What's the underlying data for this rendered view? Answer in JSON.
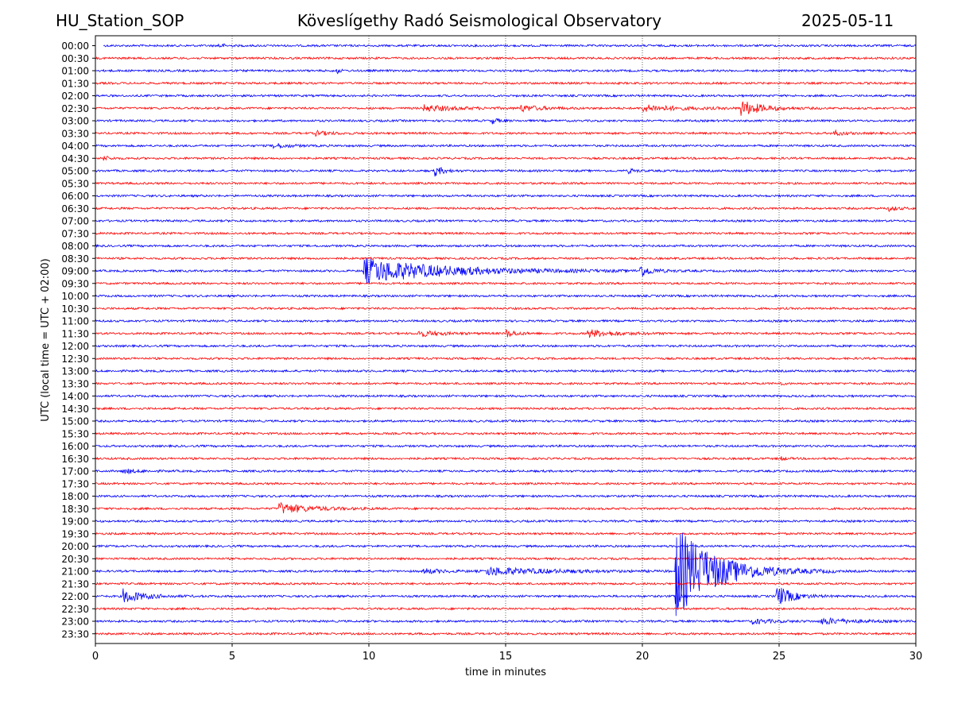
{
  "header": {
    "station": "HU_Station_SOP",
    "observatory": "Köveslígethy Radó Seismological Observatory",
    "date": "2025-05-11"
  },
  "chart_data": {
    "type": "line",
    "title": "Köveslígethy Radó Seismological Observatory",
    "xlabel": "time in minutes",
    "ylabel": "UTC (local time = UTC + 02:00)",
    "xlim": [
      0,
      30
    ],
    "x_ticks": [
      "0",
      "5",
      "10",
      "15",
      "20",
      "25",
      "30"
    ],
    "grid": "vertical dotted at each x tick",
    "trace_colors": [
      "#0000ff",
      "#ff0000"
    ],
    "rows": [
      {
        "label": "00:00",
        "color": "#0000ff",
        "events": [
          {
            "t": 4.5,
            "amp": 3,
            "dur": 0.6
          }
        ]
      },
      {
        "label": "00:30",
        "color": "#ff0000",
        "events": []
      },
      {
        "label": "01:00",
        "color": "#0000ff",
        "events": [
          {
            "t": 8.8,
            "amp": 5,
            "dur": 0.3
          }
        ]
      },
      {
        "label": "01:30",
        "color": "#ff0000",
        "events": []
      },
      {
        "label": "02:00",
        "color": "#0000ff",
        "events": []
      },
      {
        "label": "02:30",
        "color": "#ff0000",
        "events": [
          {
            "t": 12.0,
            "amp": 4,
            "dur": 3.0
          },
          {
            "t": 15.5,
            "amp": 4,
            "dur": 2.0
          },
          {
            "t": 20.0,
            "amp": 4,
            "dur": 3.5
          },
          {
            "t": 23.6,
            "amp": 10,
            "dur": 2.0
          }
        ]
      },
      {
        "label": "03:00",
        "color": "#0000ff",
        "events": [
          {
            "t": 14.5,
            "amp": 4,
            "dur": 0.6
          }
        ]
      },
      {
        "label": "03:30",
        "color": "#ff0000",
        "events": [
          {
            "t": 8.0,
            "amp": 3,
            "dur": 1.5
          },
          {
            "t": 27.0,
            "amp": 3,
            "dur": 1.0
          }
        ]
      },
      {
        "label": "04:00",
        "color": "#0000ff",
        "events": [
          {
            "t": 6.5,
            "amp": 3,
            "dur": 1.5
          }
        ]
      },
      {
        "label": "04:30",
        "color": "#ff0000",
        "events": [
          {
            "t": 0.3,
            "amp": 3,
            "dur": 0.6
          }
        ]
      },
      {
        "label": "05:00",
        "color": "#0000ff",
        "events": [
          {
            "t": 12.4,
            "amp": 7,
            "dur": 0.8
          },
          {
            "t": 19.5,
            "amp": 3,
            "dur": 0.6
          }
        ]
      },
      {
        "label": "05:30",
        "color": "#ff0000",
        "events": []
      },
      {
        "label": "06:00",
        "color": "#0000ff",
        "events": []
      },
      {
        "label": "06:30",
        "color": "#ff0000",
        "events": [
          {
            "t": 29.0,
            "amp": 3,
            "dur": 0.8
          }
        ]
      },
      {
        "label": "07:00",
        "color": "#0000ff",
        "events": []
      },
      {
        "label": "07:30",
        "color": "#ff0000",
        "events": []
      },
      {
        "label": "08:00",
        "color": "#0000ff",
        "events": []
      },
      {
        "label": "08:30",
        "color": "#ff0000",
        "events": []
      },
      {
        "label": "09:00",
        "color": "#0000ff",
        "events": [
          {
            "t": 9.8,
            "amp": 16,
            "dur": 8.0
          },
          {
            "t": 19.9,
            "amp": 8,
            "dur": 1.0
          }
        ]
      },
      {
        "label": "09:30",
        "color": "#ff0000",
        "events": []
      },
      {
        "label": "10:00",
        "color": "#0000ff",
        "events": []
      },
      {
        "label": "10:30",
        "color": "#ff0000",
        "events": []
      },
      {
        "label": "11:00",
        "color": "#0000ff",
        "events": []
      },
      {
        "label": "11:30",
        "color": "#ff0000",
        "events": [
          {
            "t": 11.8,
            "amp": 4,
            "dur": 2.0
          },
          {
            "t": 15.0,
            "amp": 5,
            "dur": 1.0
          },
          {
            "t": 18.0,
            "amp": 5,
            "dur": 2.5
          }
        ]
      },
      {
        "label": "12:00",
        "color": "#0000ff",
        "events": []
      },
      {
        "label": "12:30",
        "color": "#ff0000",
        "events": []
      },
      {
        "label": "13:00",
        "color": "#0000ff",
        "events": []
      },
      {
        "label": "13:30",
        "color": "#ff0000",
        "events": [
          {
            "t": 25.0,
            "amp": 3,
            "dur": 0.3
          }
        ]
      },
      {
        "label": "14:00",
        "color": "#0000ff",
        "events": []
      },
      {
        "label": "14:30",
        "color": "#ff0000",
        "events": []
      },
      {
        "label": "15:00",
        "color": "#0000ff",
        "events": []
      },
      {
        "label": "15:30",
        "color": "#ff0000",
        "events": []
      },
      {
        "label": "16:00",
        "color": "#0000ff",
        "events": []
      },
      {
        "label": "16:30",
        "color": "#ff0000",
        "events": [
          {
            "t": 25.0,
            "amp": 3,
            "dur": 0.5
          }
        ]
      },
      {
        "label": "17:00",
        "color": "#0000ff",
        "events": [
          {
            "t": 1.0,
            "amp": 3,
            "dur": 1.5
          }
        ]
      },
      {
        "label": "17:30",
        "color": "#ff0000",
        "events": []
      },
      {
        "label": "18:00",
        "color": "#0000ff",
        "events": []
      },
      {
        "label": "18:30",
        "color": "#ff0000",
        "events": [
          {
            "t": 6.7,
            "amp": 7,
            "dur": 3.0
          }
        ]
      },
      {
        "label": "19:00",
        "color": "#0000ff",
        "events": []
      },
      {
        "label": "19:30",
        "color": "#ff0000",
        "events": []
      },
      {
        "label": "20:00",
        "color": "#0000ff",
        "events": []
      },
      {
        "label": "20:30",
        "color": "#ff0000",
        "events": []
      },
      {
        "label": "21:00",
        "color": "#0000ff",
        "events": [
          {
            "t": 12.0,
            "amp": 3,
            "dur": 2.0
          },
          {
            "t": 14.3,
            "amp": 5,
            "dur": 6.0
          },
          {
            "t": 21.2,
            "amp": 58,
            "dur": 4.0
          }
        ]
      },
      {
        "label": "21:30",
        "color": "#ff0000",
        "events": []
      },
      {
        "label": "22:00",
        "color": "#0000ff",
        "events": [
          {
            "t": 1.0,
            "amp": 9,
            "dur": 2.0
          },
          {
            "t": 21.2,
            "amp": 38,
            "dur": 0.3
          },
          {
            "t": 24.9,
            "amp": 14,
            "dur": 1.5
          }
        ]
      },
      {
        "label": "22:30",
        "color": "#ff0000",
        "events": []
      },
      {
        "label": "23:00",
        "color": "#0000ff",
        "events": [
          {
            "t": 24.0,
            "amp": 3,
            "dur": 2.0
          },
          {
            "t": 26.5,
            "amp": 4,
            "dur": 3.0
          }
        ]
      },
      {
        "label": "23:30",
        "color": "#ff0000",
        "events": []
      }
    ]
  }
}
